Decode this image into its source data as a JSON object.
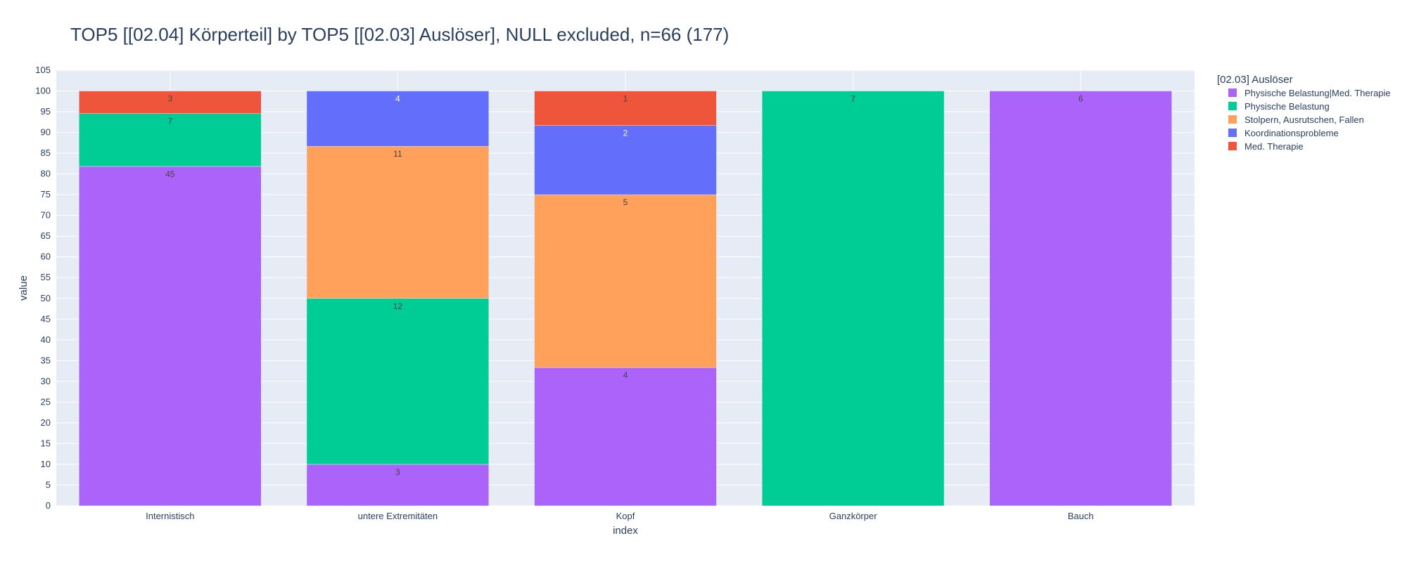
{
  "chart_data": {
    "type": "bar",
    "stacked": true,
    "title": "TOP5 [[02.04] Körperteil] by TOP5 [[02.03] Auslöser], NULL excluded, n=66 (177)",
    "xlabel": "index",
    "ylabel": "value",
    "ylim": [
      0,
      105
    ],
    "ytick_step": 5,
    "grid": true,
    "legend_title": "[02.03] Auslöser",
    "legend_position": "top-right",
    "categories": [
      "Internistisch",
      "untere Extremitäten",
      "Kopf",
      "Ganzkörper",
      "Bauch"
    ],
    "series": [
      {
        "name": "Physische Belastung|Med. Therapie",
        "color": "#ab63fa",
        "label_color": "#444444",
        "values": [
          81.82,
          10.0,
          33.33,
          0,
          100
        ],
        "labels": [
          "45",
          "3",
          "4",
          "",
          "6"
        ]
      },
      {
        "name": "Physische Belastung",
        "color": "#00cc96",
        "label_color": "#444444",
        "values": [
          12.73,
          40.0,
          0,
          100,
          0
        ],
        "labels": [
          "7",
          "12",
          "",
          "7",
          ""
        ]
      },
      {
        "name": "Stolpern, Ausrutschen, Fallen",
        "color": "#ffa15a",
        "label_color": "#444444",
        "values": [
          0,
          36.67,
          41.67,
          0,
          0
        ],
        "labels": [
          "",
          "11",
          "5",
          "",
          ""
        ]
      },
      {
        "name": "Koordinationsprobleme",
        "color": "#636efa",
        "label_color": "#ffffff",
        "values": [
          0,
          13.33,
          16.67,
          0,
          0
        ],
        "labels": [
          "",
          "4",
          "2",
          "",
          ""
        ]
      },
      {
        "name": "Med. Therapie",
        "color": "#ef553b",
        "label_color": "#444444",
        "values": [
          5.45,
          0,
          8.33,
          0,
          0
        ],
        "labels": [
          "3",
          "",
          "1",
          "",
          ""
        ]
      }
    ]
  }
}
